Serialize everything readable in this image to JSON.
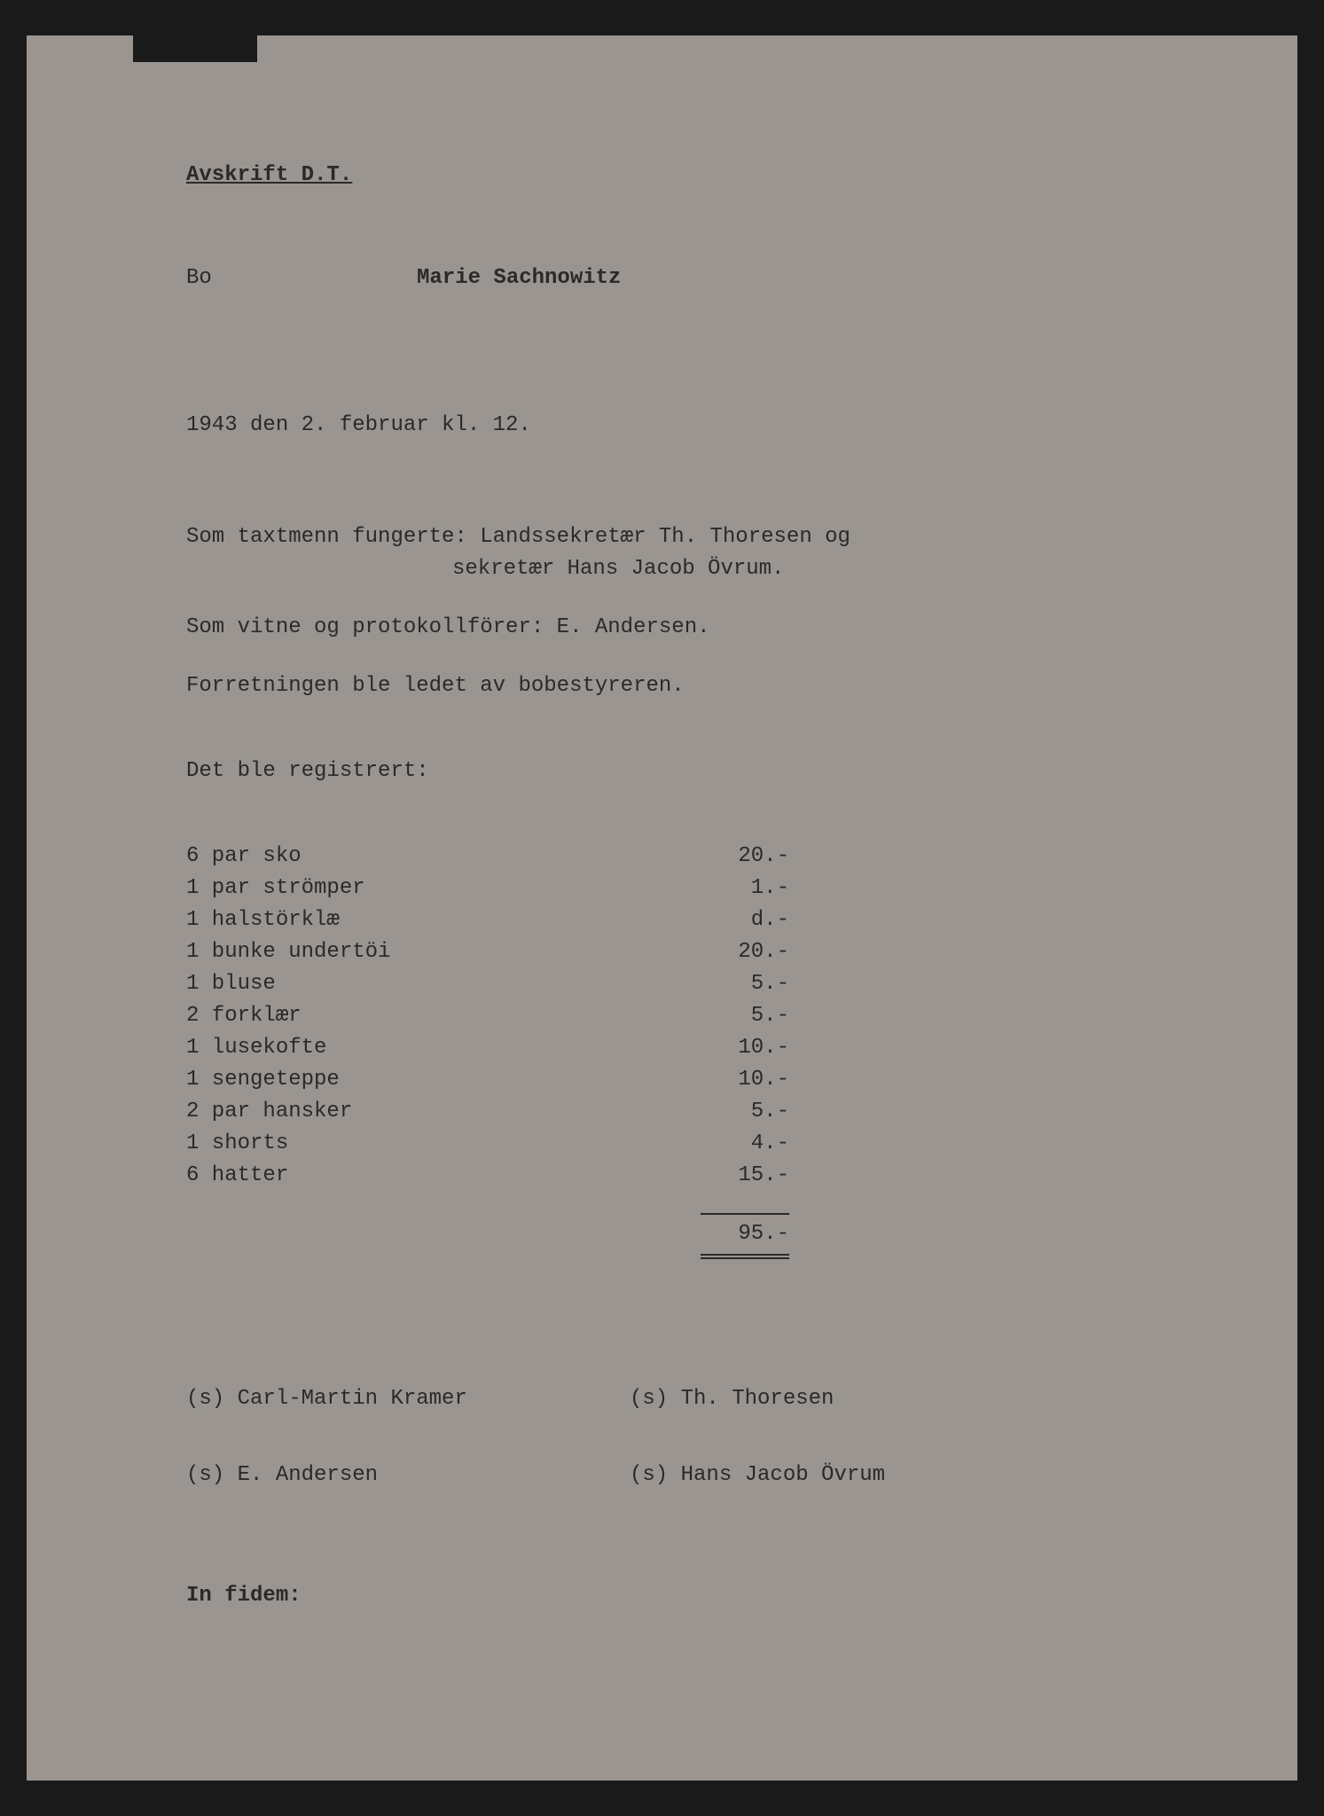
{
  "header": {
    "title": "Avskrift D.T."
  },
  "subject": {
    "label": "Bo",
    "name": "Marie Sachnowitz"
  },
  "date_line": "1943 den 2. februar kl. 12.",
  "body": {
    "line1": "Som taxtmenn fungerte: Landssekretær Th. Thoresen og",
    "line1b": "sekretær Hans Jacob Övrum.",
    "line2": "Som vitne og protokollförer: E. Andersen.",
    "line3": "Forretningen ble ledet av bobestyreren.",
    "line4": "Det ble registrert:"
  },
  "items": [
    {
      "desc": "6 par sko",
      "price": "20.-"
    },
    {
      "desc": "1 par strömper",
      "price": "1.-"
    },
    {
      "desc": "1 halstörklæ",
      "price": "d.-"
    },
    {
      "desc": "1 bunke undertöi",
      "price": "20.-"
    },
    {
      "desc": "1 bluse",
      "price": "5.-"
    },
    {
      "desc": "2 forklær",
      "price": "5.-"
    },
    {
      "desc": "1 lusekofte",
      "price": "10.-"
    },
    {
      "desc": "1 sengeteppe",
      "price": "10.-"
    },
    {
      "desc": "2 par hansker",
      "price": "5.-"
    },
    {
      "desc": "1 shorts",
      "price": "4.-"
    },
    {
      "desc": "6 hatter",
      "price": "15.-"
    }
  ],
  "total": "95.-",
  "signatures": {
    "row1_left": "(s) Carl-Martin Kramer",
    "row1_right": "(s) Th. Thoresen",
    "row2_left": "(s) E. Andersen",
    "row2_right": "(s) Hans Jacob Övrum"
  },
  "footer": "In fidem:"
}
